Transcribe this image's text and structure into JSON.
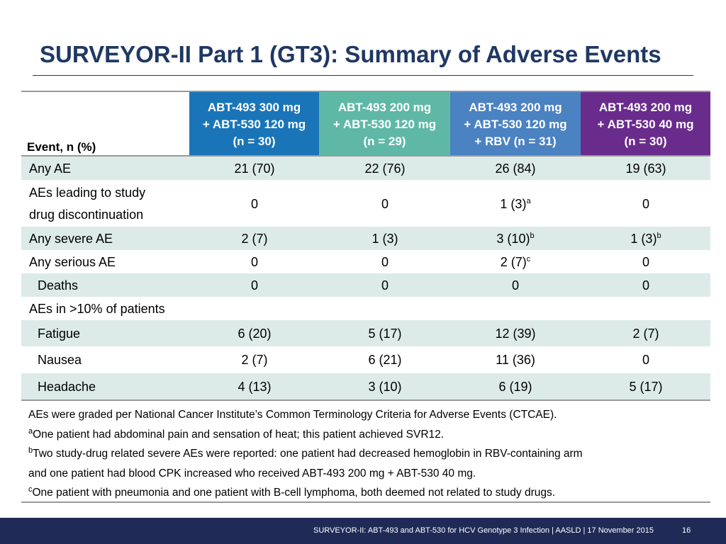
{
  "title": "SURVEYOR-II Part 1 (GT3): Summary of Adverse Events",
  "event_header": "Event, n (%)",
  "colors": {
    "title": "#1F3864",
    "col1": "#1A75B8",
    "col2": "#5FB8A6",
    "col3": "#4A82C2",
    "col4": "#6A2C8C",
    "row_shade": "#DCEBE8",
    "footer": "#1F2B56"
  },
  "columns": [
    {
      "lines": [
        "ABT-493 300 mg",
        "+ ABT-530 120 mg",
        "(n = 30)"
      ]
    },
    {
      "lines": [
        "ABT-493 200 mg",
        "+ ABT-530 120 mg",
        "(n = 29)"
      ]
    },
    {
      "lines": [
        "ABT-493 200 mg",
        "+ ABT-530 120 mg",
        "+ RBV (n = 31)"
      ]
    },
    {
      "lines": [
        "ABT-493 200 mg",
        "+ ABT-530 40 mg",
        "(n = 30)"
      ]
    }
  ],
  "rows": [
    {
      "label": "Any AE",
      "values": [
        "21 (70)",
        "22 (76)",
        "26 (84)",
        "19 (63)"
      ],
      "sups": [
        "",
        "",
        "",
        ""
      ]
    },
    {
      "label_lines": [
        "AEs leading to study",
        "drug discontinuation"
      ],
      "values": [
        "0",
        "0",
        "1 (3)",
        "0"
      ],
      "sups": [
        "",
        "",
        "a",
        ""
      ]
    },
    {
      "label": "Any severe AE",
      "values": [
        "2 (7)",
        "1 (3)",
        "3 (10)",
        "1 (3)"
      ],
      "sups": [
        "",
        "",
        "b",
        "b"
      ]
    },
    {
      "label": "Any serious AE",
      "values": [
        "0",
        "0",
        "2 (7)",
        "0"
      ],
      "sups": [
        "",
        "",
        "c",
        ""
      ]
    },
    {
      "label": "Deaths",
      "values": [
        "0",
        "0",
        "0",
        "0"
      ],
      "sups": [
        "",
        "",
        "",
        ""
      ]
    },
    {
      "label": "AEs in >10% of patients"
    },
    {
      "label": "Fatigue",
      "values": [
        "6 (20)",
        "5 (17)",
        "12 (39)",
        "2 (7)"
      ],
      "sups": [
        "",
        "",
        "",
        ""
      ]
    },
    {
      "label": "Nausea",
      "values": [
        "2 (7)",
        "6 (21)",
        "11 (36)",
        "0"
      ],
      "sups": [
        "",
        "",
        "",
        ""
      ]
    },
    {
      "label": "Headache",
      "values": [
        "4 (13)",
        "3 (10)",
        "6 (19)",
        "5 (17)"
      ],
      "sups": [
        "",
        "",
        "",
        ""
      ]
    }
  ],
  "notes": {
    "line1": "AEs were graded per National Cancer Institute’s Common Terminology Criteria for Adverse Events (CTCAE).",
    "a_mark": "a",
    "a_text": "One patient had abdominal pain and sensation of heat; this patient achieved SVR12.",
    "b_mark": "b",
    "b_text": "Two study-drug related severe AEs were reported: one patient had decreased hemoglobin in RBV-containing arm",
    "b_text2": "and one patient had blood CPK increased who received ABT-493 200 mg + ABT-530 40 mg.",
    "c_mark": "c",
    "c_text": "One patient with pneumonia and one patient with B-cell lymphoma, both deemed not related to study drugs."
  },
  "footer": {
    "text": "SURVEYOR-II: ABT-493 and ABT-530 for HCV Genotype 3 Infection   | AASLD | 17 November 2015",
    "page": "16"
  }
}
